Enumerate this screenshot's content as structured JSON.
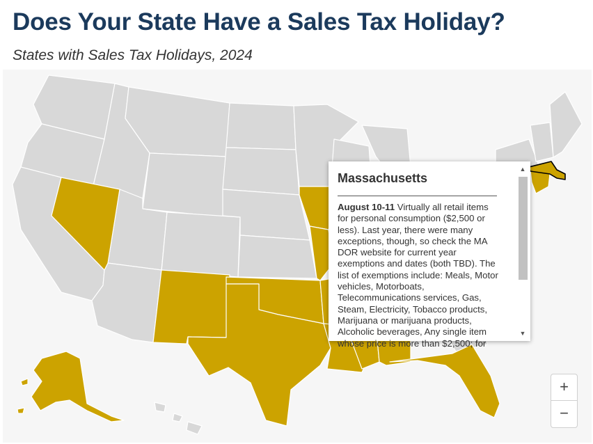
{
  "header": {
    "title": "Does Your State Have a Sales Tax Holiday?",
    "subtitle": "States with Sales Tax Holidays, 2024"
  },
  "colors": {
    "holiday": "#cca300",
    "no_holiday": "#d8d8d8",
    "background": "#f6f6f6"
  },
  "map": {
    "states_with_holiday": [
      "Nevada",
      "New Mexico",
      "Texas",
      "Oklahoma",
      "Iowa",
      "Missouri",
      "Arkansas",
      "Louisiana",
      "Mississippi",
      "Alabama",
      "Florida",
      "Massachusetts",
      "Connecticut",
      "Alaska"
    ],
    "selected_state": "Massachusetts"
  },
  "tooltip": {
    "title": "Massachusetts",
    "date": "August 10-11",
    "text": " Virtually all retail items for personal consumption ($2,500 or less). Last year, there were many exceptions, though, so check the MA DOR website for current year exemptions and dates (both TBD). The list of exemptions include: Meals, Motor vehicles, Motorboats, Telecommunications services, Gas, Steam, Electricity, Tobacco products, Marijuana or marijuana products, Alcoholic beverages, Any single item whose price is more than $2,500; for"
  },
  "zoom": {
    "in_label": "+",
    "out_label": "−"
  },
  "icons": {
    "scroll_up": "triangle-up",
    "scroll_down": "triangle-down"
  }
}
